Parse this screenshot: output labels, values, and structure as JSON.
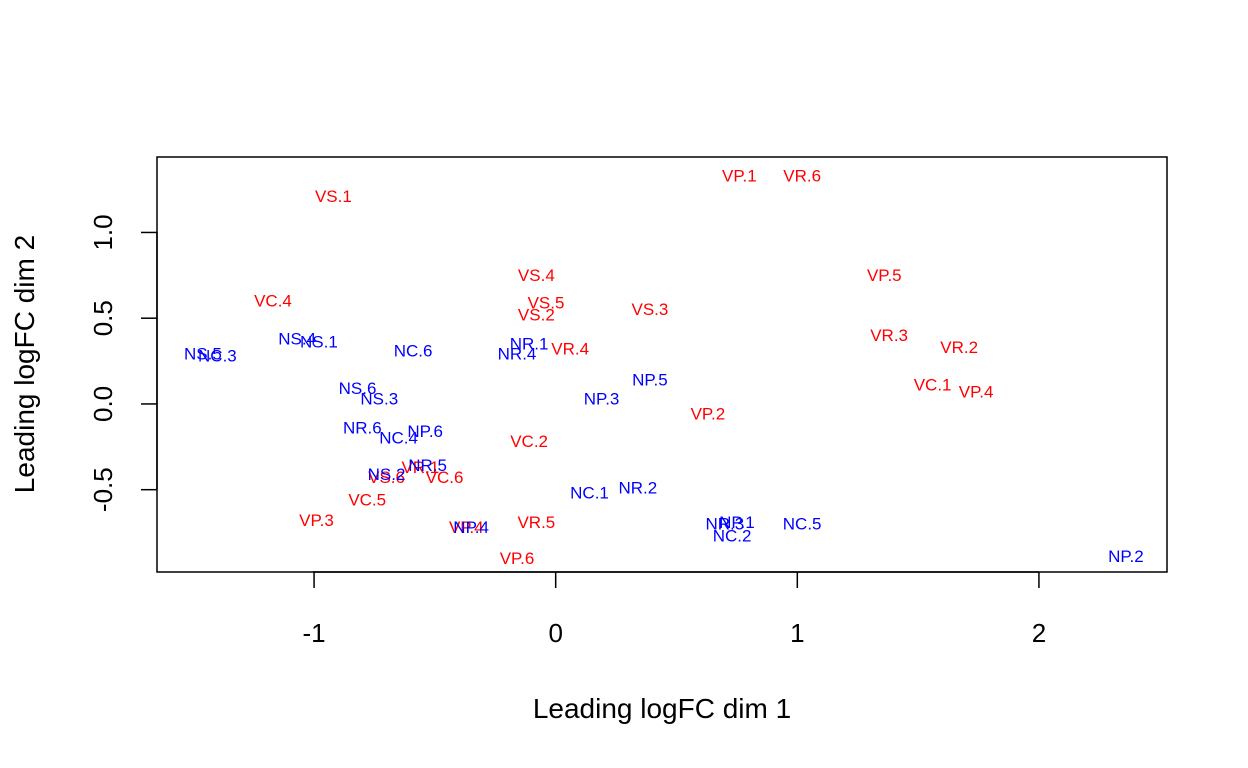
{
  "chart_data": {
    "type": "scatter",
    "title": "",
    "xlabel": "Leading logFC dim 1",
    "ylabel": "Leading logFC dim 2",
    "xlim": [
      -1.65,
      2.53
    ],
    "ylim": [
      -0.98,
      1.44
    ],
    "x_ticks": [
      -1,
      0,
      1,
      2
    ],
    "x_tick_labels": [
      "-1",
      "0",
      "1",
      "2"
    ],
    "y_ticks": [
      -0.5,
      0.0,
      0.5,
      1.0
    ],
    "y_tick_labels": [
      "-0.5",
      "0.0",
      "0.5",
      "1.0"
    ],
    "grid": false,
    "colors": {
      "V": "#ff0000",
      "N": "#0000ff"
    },
    "points": [
      {
        "label": "VS.1",
        "x": -0.92,
        "y": 1.21,
        "group": "V"
      },
      {
        "label": "VP.1",
        "x": 0.76,
        "y": 1.33,
        "group": "V"
      },
      {
        "label": "VR.6",
        "x": 1.02,
        "y": 1.33,
        "group": "V"
      },
      {
        "label": "VS.4",
        "x": -0.08,
        "y": 0.75,
        "group": "V"
      },
      {
        "label": "VP.5",
        "x": 1.36,
        "y": 0.75,
        "group": "V"
      },
      {
        "label": "VC.4",
        "x": -1.17,
        "y": 0.6,
        "group": "V"
      },
      {
        "label": "VS.5",
        "x": -0.04,
        "y": 0.59,
        "group": "V"
      },
      {
        "label": "VS.2",
        "x": -0.08,
        "y": 0.52,
        "group": "V"
      },
      {
        "label": "VS.3",
        "x": 0.39,
        "y": 0.55,
        "group": "V"
      },
      {
        "label": "VR.3",
        "x": 1.38,
        "y": 0.4,
        "group": "V"
      },
      {
        "label": "VR.2",
        "x": 1.67,
        "y": 0.33,
        "group": "V"
      },
      {
        "label": "VR.4",
        "x": 0.06,
        "y": 0.32,
        "group": "V"
      },
      {
        "label": "VC.1",
        "x": 1.56,
        "y": 0.11,
        "group": "V"
      },
      {
        "label": "VP.4",
        "x": 1.74,
        "y": 0.07,
        "group": "V"
      },
      {
        "label": "VP.2",
        "x": 0.63,
        "y": -0.06,
        "group": "V"
      },
      {
        "label": "VC.2",
        "x": -0.11,
        "y": -0.22,
        "group": "V"
      },
      {
        "label": "VR.1",
        "x": -0.56,
        "y": -0.37,
        "group": "V"
      },
      {
        "label": "VS.6",
        "x": -0.7,
        "y": -0.43,
        "group": "V"
      },
      {
        "label": "VC.6",
        "x": -0.46,
        "y": -0.43,
        "group": "V"
      },
      {
        "label": "VC.5",
        "x": -0.78,
        "y": -0.56,
        "group": "V"
      },
      {
        "label": "VP.3",
        "x": -0.99,
        "y": -0.68,
        "group": "V"
      },
      {
        "label": "VR.5",
        "x": -0.08,
        "y": -0.69,
        "group": "V"
      },
      {
        "label": "VP.4",
        "x": -0.37,
        "y": -0.72,
        "group": "V"
      },
      {
        "label": "VP.6",
        "x": -0.16,
        "y": -0.9,
        "group": "V"
      },
      {
        "label": "NS.4",
        "x": -1.07,
        "y": 0.38,
        "group": "N"
      },
      {
        "label": "NS.1",
        "x": -0.98,
        "y": 0.36,
        "group": "N"
      },
      {
        "label": "NS.5",
        "x": -1.46,
        "y": 0.29,
        "group": "N"
      },
      {
        "label": "NC.3",
        "x": -1.4,
        "y": 0.28,
        "group": "N"
      },
      {
        "label": "NC.6",
        "x": -0.59,
        "y": 0.31,
        "group": "N"
      },
      {
        "label": "NR.1",
        "x": -0.11,
        "y": 0.35,
        "group": "N"
      },
      {
        "label": "NR.4",
        "x": -0.16,
        "y": 0.29,
        "group": "N"
      },
      {
        "label": "NP.5",
        "x": 0.39,
        "y": 0.14,
        "group": "N"
      },
      {
        "label": "NS.6",
        "x": -0.82,
        "y": 0.09,
        "group": "N"
      },
      {
        "label": "NS.3",
        "x": -0.73,
        "y": 0.03,
        "group": "N"
      },
      {
        "label": "NP.3",
        "x": 0.19,
        "y": 0.03,
        "group": "N"
      },
      {
        "label": "NR.6",
        "x": -0.8,
        "y": -0.14,
        "group": "N"
      },
      {
        "label": "NP.6",
        "x": -0.54,
        "y": -0.16,
        "group": "N"
      },
      {
        "label": "NC.4",
        "x": -0.65,
        "y": -0.2,
        "group": "N"
      },
      {
        "label": "NR.5",
        "x": -0.53,
        "y": -0.36,
        "group": "N"
      },
      {
        "label": "NS.2",
        "x": -0.7,
        "y": -0.41,
        "group": "N"
      },
      {
        "label": "NC.1",
        "x": 0.14,
        "y": -0.52,
        "group": "N"
      },
      {
        "label": "NR.2",
        "x": 0.34,
        "y": -0.49,
        "group": "N"
      },
      {
        "label": "NP.4",
        "x": -0.35,
        "y": -0.72,
        "group": "N"
      },
      {
        "label": "NP.1",
        "x": 0.75,
        "y": -0.69,
        "group": "N"
      },
      {
        "label": "NR.3",
        "x": 0.7,
        "y": -0.7,
        "group": "N"
      },
      {
        "label": "NC.5",
        "x": 1.02,
        "y": -0.7,
        "group": "N"
      },
      {
        "label": "NC.2",
        "x": 0.73,
        "y": -0.77,
        "group": "N"
      },
      {
        "label": "NP.2",
        "x": 2.36,
        "y": -0.89,
        "group": "N"
      }
    ]
  }
}
